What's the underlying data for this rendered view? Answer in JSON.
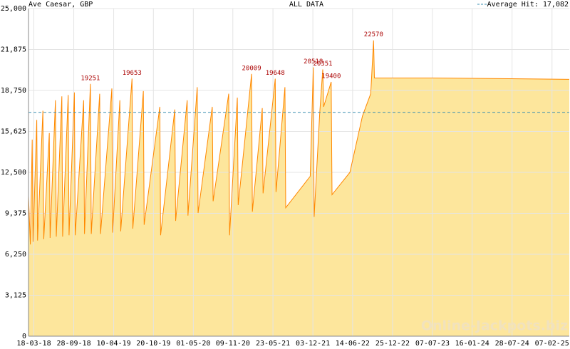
{
  "chart_data": {
    "type": "area",
    "title": "Ave Caesar, GBP",
    "subtitle": "ALL DATA",
    "average_hit": {
      "value": 17082,
      "label": "Average Hit: 17,082"
    },
    "average_color": "#3a8fb0",
    "watermark": "Online-Jackpots.biz",
    "line_color": "#ff8800",
    "fill_color": "#fde69c",
    "grid": true,
    "xlim": [
      "2018-02-20",
      "2025-05-02"
    ],
    "xticks": [
      {
        "value": "2018-03-18",
        "label": "18-03-18"
      },
      {
        "value": "2018-09-28",
        "label": "28-09-18"
      },
      {
        "value": "2019-04-10",
        "label": "10-04-19"
      },
      {
        "value": "2019-10-20",
        "label": "20-10-19"
      },
      {
        "value": "2020-05-01",
        "label": "01-05-20"
      },
      {
        "value": "2020-11-09",
        "label": "09-11-20"
      },
      {
        "value": "2021-05-23",
        "label": "23-05-21"
      },
      {
        "value": "2021-12-03",
        "label": "03-12-21"
      },
      {
        "value": "2022-06-14",
        "label": "14-06-22"
      },
      {
        "value": "2022-12-25",
        "label": "25-12-22"
      },
      {
        "value": "2023-07-07",
        "label": "07-07-23"
      },
      {
        "value": "2024-01-16",
        "label": "16-01-24"
      },
      {
        "value": "2024-07-28",
        "label": "28-07-24"
      },
      {
        "value": "2025-02-07",
        "label": "07-02-25"
      }
    ],
    "ylim": [
      0,
      25000
    ],
    "yticks": [
      0,
      {
        "value": 3125,
        "label": "3,125"
      },
      {
        "value": 6250,
        "label": "6,250"
      },
      {
        "value": 9375,
        "label": "9,375"
      },
      {
        "value": 12500,
        "label": "12,500"
      },
      {
        "value": 15625,
        "label": "15,625"
      },
      {
        "value": 18750,
        "label": "18,750"
      },
      {
        "value": 21875,
        "label": "21,875"
      },
      {
        "value": 25000,
        "label": "25,000"
      }
    ],
    "x": [
      "2018-02-20",
      "2018-03-01",
      "2018-03-10",
      "2018-03-14",
      "2018-04-01",
      "2018-04-05",
      "2018-05-01",
      "2018-05-05",
      "2018-06-01",
      "2018-06-05",
      "2018-07-01",
      "2018-07-05",
      "2018-08-01",
      "2018-08-05",
      "2018-09-01",
      "2018-09-05",
      "2018-10-01",
      "2018-10-05",
      "2018-11-15",
      "2018-11-19",
      "2018-12-18",
      "2018-12-22",
      "2019-02-01",
      "2019-02-05",
      "2019-04-01",
      "2019-04-05",
      "2019-05-10",
      "2019-05-14",
      "2019-07-08",
      "2019-07-12",
      "2019-09-01",
      "2019-09-05",
      "2019-11-20",
      "2019-11-24",
      "2020-02-01",
      "2020-02-05",
      "2020-04-01",
      "2020-04-05",
      "2020-05-20",
      "2020-05-24",
      "2020-08-01",
      "2020-08-05",
      "2020-10-20",
      "2020-10-24",
      "2020-12-01",
      "2020-12-05",
      "2021-02-08",
      "2021-02-12",
      "2021-04-01",
      "2021-04-05",
      "2021-06-03",
      "2021-06-07",
      "2021-07-20",
      "2021-07-24",
      "2021-11-20",
      "2021-12-05",
      "2021-12-09",
      "2022-01-05",
      "2022-01-20",
      "2022-01-24",
      "2022-03-02",
      "2022-03-06",
      "2022-06-01",
      "2022-08-01",
      "2022-09-10",
      "2022-09-24",
      "2022-09-28",
      "2023-07-01",
      "2024-06-01",
      "2025-05-02"
    ],
    "values": [
      10700,
      7000,
      15000,
      7200,
      16500,
      7300,
      17200,
      7400,
      15500,
      7500,
      18000,
      7600,
      18300,
      7600,
      18400,
      7700,
      18600,
      7700,
      18000,
      7800,
      19251,
      7800,
      18500,
      7800,
      18900,
      7900,
      18000,
      8000,
      19653,
      8200,
      18700,
      8500,
      17500,
      7700,
      17300,
      8800,
      18000,
      9200,
      19000,
      9400,
      17500,
      10300,
      18500,
      7700,
      18200,
      10000,
      20009,
      9500,
      17400,
      10900,
      19648,
      11000,
      19000,
      9800,
      12200,
      20518,
      9100,
      17000,
      20351,
      17500,
      19400,
      10800,
      12500,
      16800,
      18500,
      22570,
      19700,
      19700,
      19650,
      19600
    ],
    "peaks": [
      {
        "x": "2018-12-18",
        "value": 19251
      },
      {
        "x": "2019-07-08",
        "value": 19653
      },
      {
        "x": "2021-02-08",
        "value": 20009
      },
      {
        "x": "2021-06-03",
        "value": 19648
      },
      {
        "x": "2021-12-05",
        "value": 20518
      },
      {
        "x": "2022-01-20",
        "value": 20351
      },
      {
        "x": "2022-03-02",
        "value": 19400
      },
      {
        "x": "2022-09-24",
        "value": 22570
      }
    ]
  }
}
